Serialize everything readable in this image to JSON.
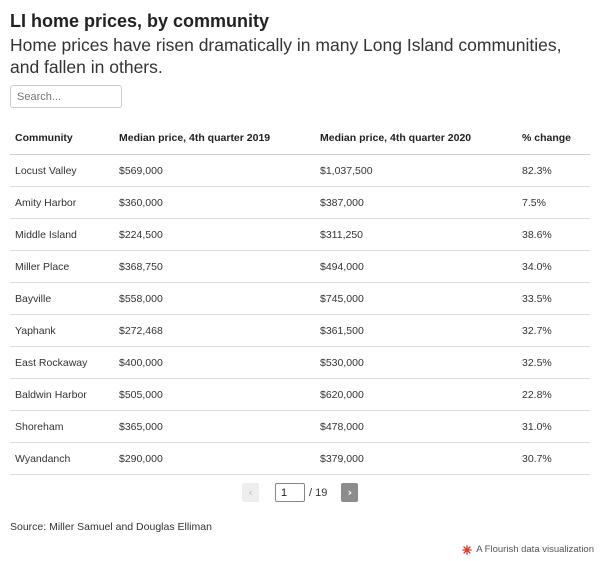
{
  "header": {
    "title": "LI home prices, by community",
    "subtitle": "Home prices have risen dramatically in many Long Island communities, and fallen in others."
  },
  "search": {
    "placeholder": "Search..."
  },
  "table": {
    "columns": [
      "Community",
      "Median price, 4th quarter 2019",
      "Median price, 4th quarter 2020",
      "% change"
    ],
    "rows": [
      [
        "Locust Valley",
        "$569,000",
        "$1,037,500",
        "82.3%"
      ],
      [
        "Amity Harbor",
        "$360,000",
        "$387,000",
        "7.5%"
      ],
      [
        "Middle Island",
        "$224,500",
        "$311,250",
        "38.6%"
      ],
      [
        "Miller Place",
        "$368,750",
        "$494,000",
        "34.0%"
      ],
      [
        "Bayville",
        "$558,000",
        "$745,000",
        "33.5%"
      ],
      [
        "Yaphank",
        "$272,468",
        "$361,500",
        "32.7%"
      ],
      [
        "East Rockaway",
        "$400,000",
        "$530,000",
        "32.5%"
      ],
      [
        "Baldwin Harbor",
        "$505,000",
        "$620,000",
        "22.8%"
      ],
      [
        "Shoreham",
        "$365,000",
        "$478,000",
        "31.0%"
      ],
      [
        "Wyandanch",
        "$290,000",
        "$379,000",
        "30.7%"
      ]
    ]
  },
  "pagination": {
    "prev_label": "‹",
    "next_label": "›",
    "current_page": "1",
    "total_label": "/ 19"
  },
  "footer": {
    "source": "Source: Miller Samuel and Douglas Elliman",
    "credit": "A Flourish data visualization"
  },
  "colors": {
    "accent": "#d3392b",
    "next_button": "#8c8c8c",
    "prev_button": "#eeeeee"
  },
  "icons": {
    "credit_logo": "flourish-logo-icon"
  }
}
